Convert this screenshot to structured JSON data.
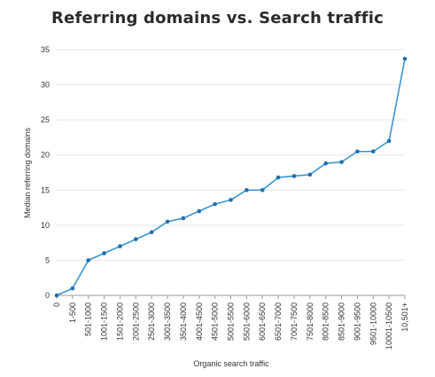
{
  "chart_data": {
    "type": "line",
    "title": "Referring domains vs. Search traffic",
    "xlabel": "Organic search traffic",
    "ylabel": "Median referring domains",
    "categories": [
      "0",
      "1-500",
      "501-1000",
      "1001-1500",
      "1501-2000",
      "2001-2500",
      "2501-3000",
      "3001-3500",
      "3501-4000",
      "4001-4500",
      "4501-5000",
      "5001-5500",
      "5501-6000",
      "6001-6500",
      "6501-7000",
      "7001-7500",
      "7501-8000",
      "8001-8500",
      "8501-9000",
      "9001-9500",
      "9501-10000",
      "10001-10500",
      "10,501+"
    ],
    "series": [
      {
        "values": [
          0,
          1,
          5,
          6,
          7,
          8,
          9,
          10.5,
          11,
          12,
          13,
          13.6,
          15,
          15,
          16.8,
          17,
          17.2,
          18.8,
          19,
          20.5,
          20.5,
          22,
          33.7
        ]
      }
    ],
    "yticks": [
      0,
      5,
      10,
      15,
      20,
      25,
      30,
      35
    ],
    "ylim": [
      0,
      35
    ],
    "grid": true,
    "line_color": "#3a95cf",
    "point_color": "#1f6fb0"
  }
}
